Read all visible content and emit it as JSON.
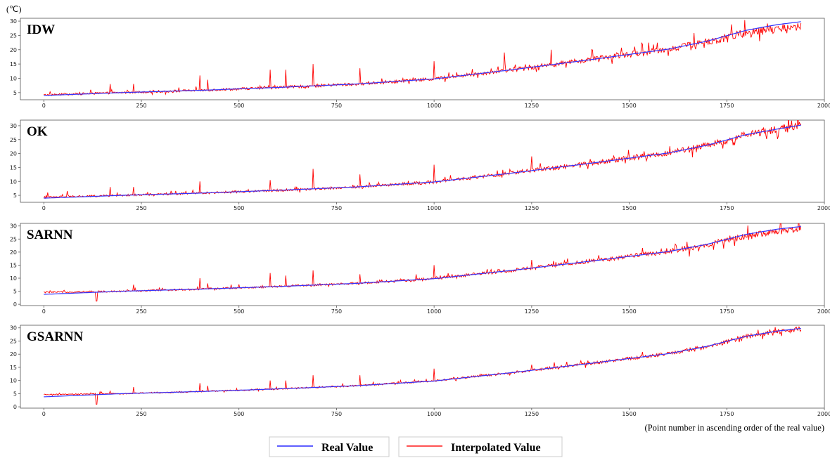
{
  "unit_label": "(℃)",
  "x_note": "(Point number in ascending order of the real value)",
  "legend": [
    {
      "label": "Real Value",
      "color": "#2a2aff"
    },
    {
      "label": "Interpolated Value",
      "color": "#ff1a1a"
    }
  ],
  "colors": {
    "real": "#3333ff",
    "interpolated": "#ff0000",
    "axis": "#555555"
  },
  "chart_data": [
    {
      "type": "line",
      "title": "IDW",
      "xlabel": "",
      "ylabel": "",
      "xlim": [
        -60,
        2000
      ],
      "ylim": [
        2.5,
        31
      ],
      "xticks": [
        0,
        250,
        500,
        750,
        1000,
        1250,
        1500,
        1750,
        2000
      ],
      "yticks": [
        5,
        10,
        15,
        20,
        25,
        30
      ],
      "noise_scale": 1.0,
      "interp_bias": -0.8,
      "low_offset": 0.2,
      "spikes": [
        [
          120,
          6
        ],
        [
          170,
          8
        ],
        [
          230,
          8
        ],
        [
          400,
          11
        ],
        [
          420,
          9.5
        ],
        [
          580,
          13
        ],
        [
          620,
          13
        ],
        [
          690,
          15
        ],
        [
          810,
          13.5
        ],
        [
          1000,
          16
        ],
        [
          1180,
          19
        ],
        [
          1300,
          20
        ],
        [
          1560,
          20
        ]
      ],
      "series": [
        {
          "name": "Real Value",
          "color": "#3333ff",
          "x": [
            0,
            200,
            400,
            600,
            800,
            1000,
            1200,
            1400,
            1600,
            1700,
            1800,
            1880,
            1940
          ],
          "values": [
            4.0,
            5.0,
            5.8,
            6.8,
            8.0,
            9.8,
            13.0,
            16.5,
            20.2,
            23.0,
            26.8,
            28.8,
            29.8
          ]
        },
        {
          "name": "Interpolated Value",
          "color": "#ff0000"
        }
      ]
    },
    {
      "type": "line",
      "title": "OK",
      "xlabel": "",
      "ylabel": "",
      "xlim": [
        -60,
        2000
      ],
      "ylim": [
        2.5,
        32
      ],
      "xticks": [
        0,
        250,
        500,
        750,
        1000,
        1250,
        1500,
        1750,
        2000
      ],
      "yticks": [
        5,
        10,
        15,
        20,
        25,
        30
      ],
      "noise_scale": 0.9,
      "interp_bias": 0.0,
      "low_offset": 0.3,
      "spikes": [
        [
          10,
          6
        ],
        [
          60,
          6.5
        ],
        [
          170,
          8
        ],
        [
          230,
          8
        ],
        [
          400,
          10
        ],
        [
          580,
          10.5
        ],
        [
          690,
          14.5
        ],
        [
          810,
          12.5
        ],
        [
          1000,
          16
        ],
        [
          1250,
          19
        ],
        [
          1400,
          18
        ]
      ],
      "series": [
        {
          "name": "Real Value",
          "color": "#3333ff",
          "x": [
            0,
            200,
            400,
            600,
            800,
            1000,
            1200,
            1400,
            1600,
            1700,
            1800,
            1880,
            1940
          ],
          "values": [
            4.0,
            5.0,
            5.8,
            6.8,
            8.0,
            9.8,
            13.0,
            16.5,
            20.2,
            23.0,
            26.8,
            28.8,
            30.2
          ]
        },
        {
          "name": "Interpolated Value",
          "color": "#ff0000"
        }
      ]
    },
    {
      "type": "line",
      "title": "SARNN",
      "xlabel": "",
      "ylabel": "",
      "xlim": [
        -60,
        2000
      ],
      "ylim": [
        -0.5,
        31
      ],
      "xticks": [
        0,
        250,
        500,
        750,
        1000,
        1250,
        1500,
        1750,
        2000
      ],
      "yticks": [
        0,
        5,
        10,
        15,
        20,
        25,
        30
      ],
      "noise_scale": 0.85,
      "interp_bias": -0.4,
      "low_offset": 0.8,
      "spikes": [
        [
          135,
          1.2
        ],
        [
          230,
          7.5
        ],
        [
          400,
          10
        ],
        [
          420,
          8
        ],
        [
          580,
          12
        ],
        [
          620,
          11
        ],
        [
          690,
          13
        ],
        [
          810,
          11.5
        ],
        [
          1000,
          15
        ],
        [
          1250,
          17
        ]
      ],
      "series": [
        {
          "name": "Real Value",
          "color": "#3333ff",
          "x": [
            0,
            200,
            400,
            600,
            800,
            1000,
            1200,
            1400,
            1600,
            1700,
            1800,
            1880,
            1940
          ],
          "values": [
            3.8,
            5.0,
            5.8,
            6.8,
            8.0,
            9.8,
            13.0,
            16.5,
            20.2,
            23.0,
            26.8,
            28.8,
            29.8
          ]
        },
        {
          "name": "Interpolated Value",
          "color": "#ff0000"
        }
      ]
    },
    {
      "type": "line",
      "title": "GSARNN",
      "xlabel": "",
      "ylabel": "",
      "xlim": [
        -60,
        2000
      ],
      "ylim": [
        -0.5,
        31
      ],
      "xticks": [
        0,
        250,
        500,
        750,
        1000,
        1250,
        1500,
        1750,
        2000
      ],
      "yticks": [
        0,
        5,
        10,
        15,
        20,
        25,
        30
      ],
      "noise_scale": 0.6,
      "interp_bias": -0.1,
      "low_offset": 0.8,
      "spikes": [
        [
          135,
          1
        ],
        [
          170,
          6
        ],
        [
          230,
          7.5
        ],
        [
          400,
          9
        ],
        [
          420,
          8
        ],
        [
          580,
          10
        ],
        [
          620,
          10
        ],
        [
          690,
          12
        ],
        [
          810,
          12
        ],
        [
          1000,
          14.5
        ],
        [
          1250,
          16
        ]
      ],
      "series": [
        {
          "name": "Real Value",
          "color": "#3333ff",
          "x": [
            0,
            200,
            400,
            600,
            800,
            1000,
            1200,
            1400,
            1600,
            1700,
            1800,
            1880,
            1940
          ],
          "values": [
            3.8,
            5.0,
            5.8,
            6.8,
            8.0,
            9.8,
            13.0,
            16.5,
            20.2,
            23.0,
            26.8,
            28.8,
            29.8
          ]
        },
        {
          "name": "Interpolated Value",
          "color": "#ff0000"
        }
      ]
    }
  ]
}
